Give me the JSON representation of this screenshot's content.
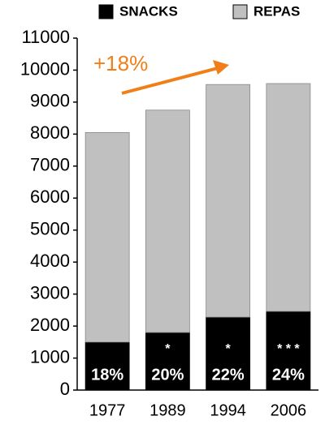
{
  "chart_data": {
    "type": "stacked_bar",
    "categories": [
      "1977",
      "1989",
      "1994",
      "2006"
    ],
    "series": [
      {
        "name": "SNACKS",
        "color": "#000000",
        "values": [
          1500,
          1800,
          2280,
          2460
        ]
      },
      {
        "name": "REPAS",
        "color": "#c0c0c0",
        "values": [
          6550,
          6950,
          7270,
          7120
        ]
      }
    ],
    "share_labels": [
      "18%",
      "20%",
      "22%",
      "24%"
    ],
    "significance_marks": [
      null,
      "*",
      "*",
      "* * *"
    ],
    "annotation": "+18%",
    "annotation_color": "#f07f1a",
    "ylim": [
      0,
      11000
    ],
    "yticks": [
      0,
      1000,
      2000,
      3000,
      4000,
      5000,
      6000,
      7000,
      8000,
      9000,
      10000,
      11000
    ]
  }
}
